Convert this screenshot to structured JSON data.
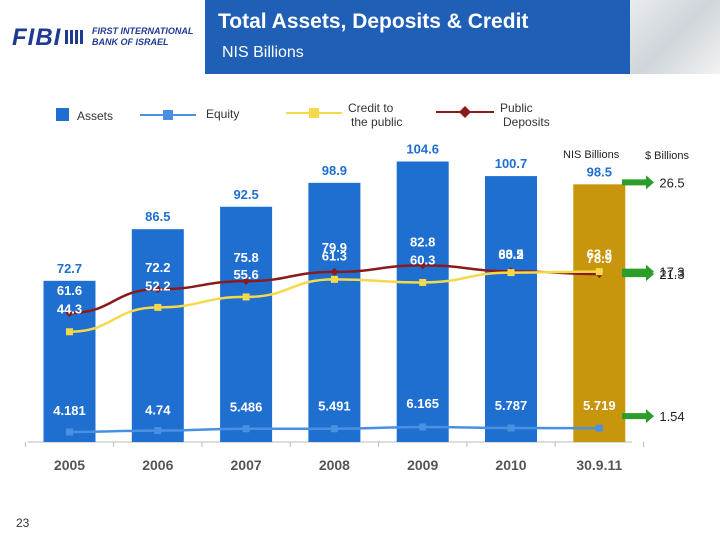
{
  "header": {
    "logo_brand": "FIBI",
    "logo_line1": "FIRST INTERNATIONAL",
    "logo_line2": "BANK OF ISRAEL",
    "title": "Total Assets, Deposits & Credit",
    "subtitle": "NIS Billions"
  },
  "page_number": "23",
  "colors": {
    "title_bar": "#1f5fb5",
    "assets_bar": "#1f6fd1",
    "last_bar": "#c8960c",
    "equity": "#4a90e2",
    "credit": "#f5d94a",
    "deposits": "#8b1a1a",
    "arrow": "#2a9d2a",
    "logo": "#1f3a93"
  },
  "chart_data": {
    "type": "bar",
    "categories": [
      "2005",
      "2006",
      "2007",
      "2008",
      "2009",
      "2010",
      "30.9.11"
    ],
    "series": [
      {
        "name": "Assets",
        "kind": "bar",
        "values": [
          72.7,
          86.5,
          92.5,
          98.9,
          104.6,
          100.7,
          98.5
        ]
      },
      {
        "name": "Equity",
        "kind": "line",
        "values": [
          4.181,
          4.74,
          5.486,
          5.491,
          6.165,
          5.787,
          5.719
        ]
      },
      {
        "name": "Credit to the public",
        "kind": "line",
        "values": [
          44.3,
          52.2,
          55.6,
          61.3,
          60.3,
          63.5,
          63.8
        ]
      },
      {
        "name": "Public Deposits",
        "kind": "line",
        "values": [
          61.6,
          72.2,
          75.8,
          79.9,
          82.8,
          80.2,
          78.9
        ]
      }
    ],
    "value_labels": {
      "assets": [
        "72.7",
        "86.5",
        "92.5",
        "98.9",
        "104.6",
        "100.7",
        "98.5"
      ],
      "equity": [
        "4.181",
        "4.74",
        "5.486",
        "5.491",
        "6.165",
        "5.787",
        "5.719"
      ],
      "credit": [
        "44.3",
        "52.2",
        "55.6",
        "61.3",
        "60.3",
        "63.5",
        "63.8"
      ],
      "deposits": [
        "61.6",
        "72.2",
        "75.8",
        "79.9",
        "82.8",
        "80.2",
        "78.9"
      ]
    },
    "legend": {
      "assets": "Assets",
      "equity": "Equity",
      "credit": [
        "Credit to",
        "the public"
      ],
      "deposits": [
        "Public",
        "Deposits"
      ]
    },
    "units": {
      "nis": "NIS Billions",
      "usd": "$ Billions"
    },
    "usd_values": [
      "26.5",
      "21.3",
      "17.3",
      "1.54"
    ]
  }
}
